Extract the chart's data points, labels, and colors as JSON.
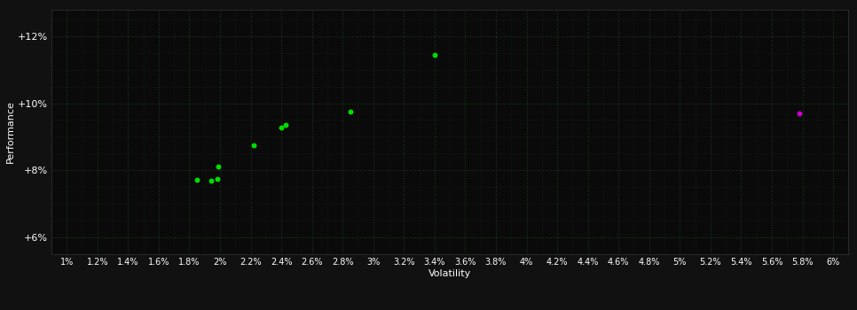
{
  "xlabel": "Volatility",
  "ylabel": "Performance",
  "background_color": "#111111",
  "plot_bg_color": "#0a0a0a",
  "grid_color": "#1a3a1a",
  "text_color": "#ffffff",
  "x_ticks": [
    1.0,
    1.2,
    1.4,
    1.6,
    1.8,
    2.0,
    2.2,
    2.4,
    2.6,
    2.8,
    3.0,
    3.2,
    3.4,
    3.6,
    3.8,
    4.0,
    4.2,
    4.4,
    4.6,
    4.8,
    5.0,
    5.2,
    5.4,
    5.6,
    5.8,
    6.0
  ],
  "x_tick_labels": [
    "1%",
    "1.2%",
    "1.4%",
    "1.6%",
    "1.8%",
    "2%",
    "2.2%",
    "2.4%",
    "2.6%",
    "2.8%",
    "3%",
    "3.2%",
    "3.4%",
    "3.6%",
    "3.8%",
    "4%",
    "4.2%",
    "4.4%",
    "4.6%",
    "4.8%",
    "5%",
    "5.2%",
    "5.4%",
    "5.6%",
    "5.8%",
    "6%"
  ],
  "y_ticks": [
    6.0,
    8.0,
    10.0,
    12.0
  ],
  "y_tick_labels": [
    "+6%",
    "+8%",
    "+10%",
    "+12%"
  ],
  "xlim": [
    0.9,
    6.1
  ],
  "ylim": [
    5.5,
    12.8
  ],
  "green_points": [
    [
      1.85,
      7.72
    ],
    [
      1.94,
      7.68
    ],
    [
      1.98,
      7.75
    ],
    [
      1.99,
      8.12
    ],
    [
      2.22,
      8.75
    ],
    [
      2.4,
      9.28
    ],
    [
      2.43,
      9.35
    ],
    [
      2.85,
      9.75
    ],
    [
      3.4,
      11.45
    ]
  ],
  "purple_points": [
    [
      5.78,
      9.7
    ]
  ],
  "green_color": "#00dd00",
  "purple_color": "#cc00cc",
  "marker_size": 18
}
